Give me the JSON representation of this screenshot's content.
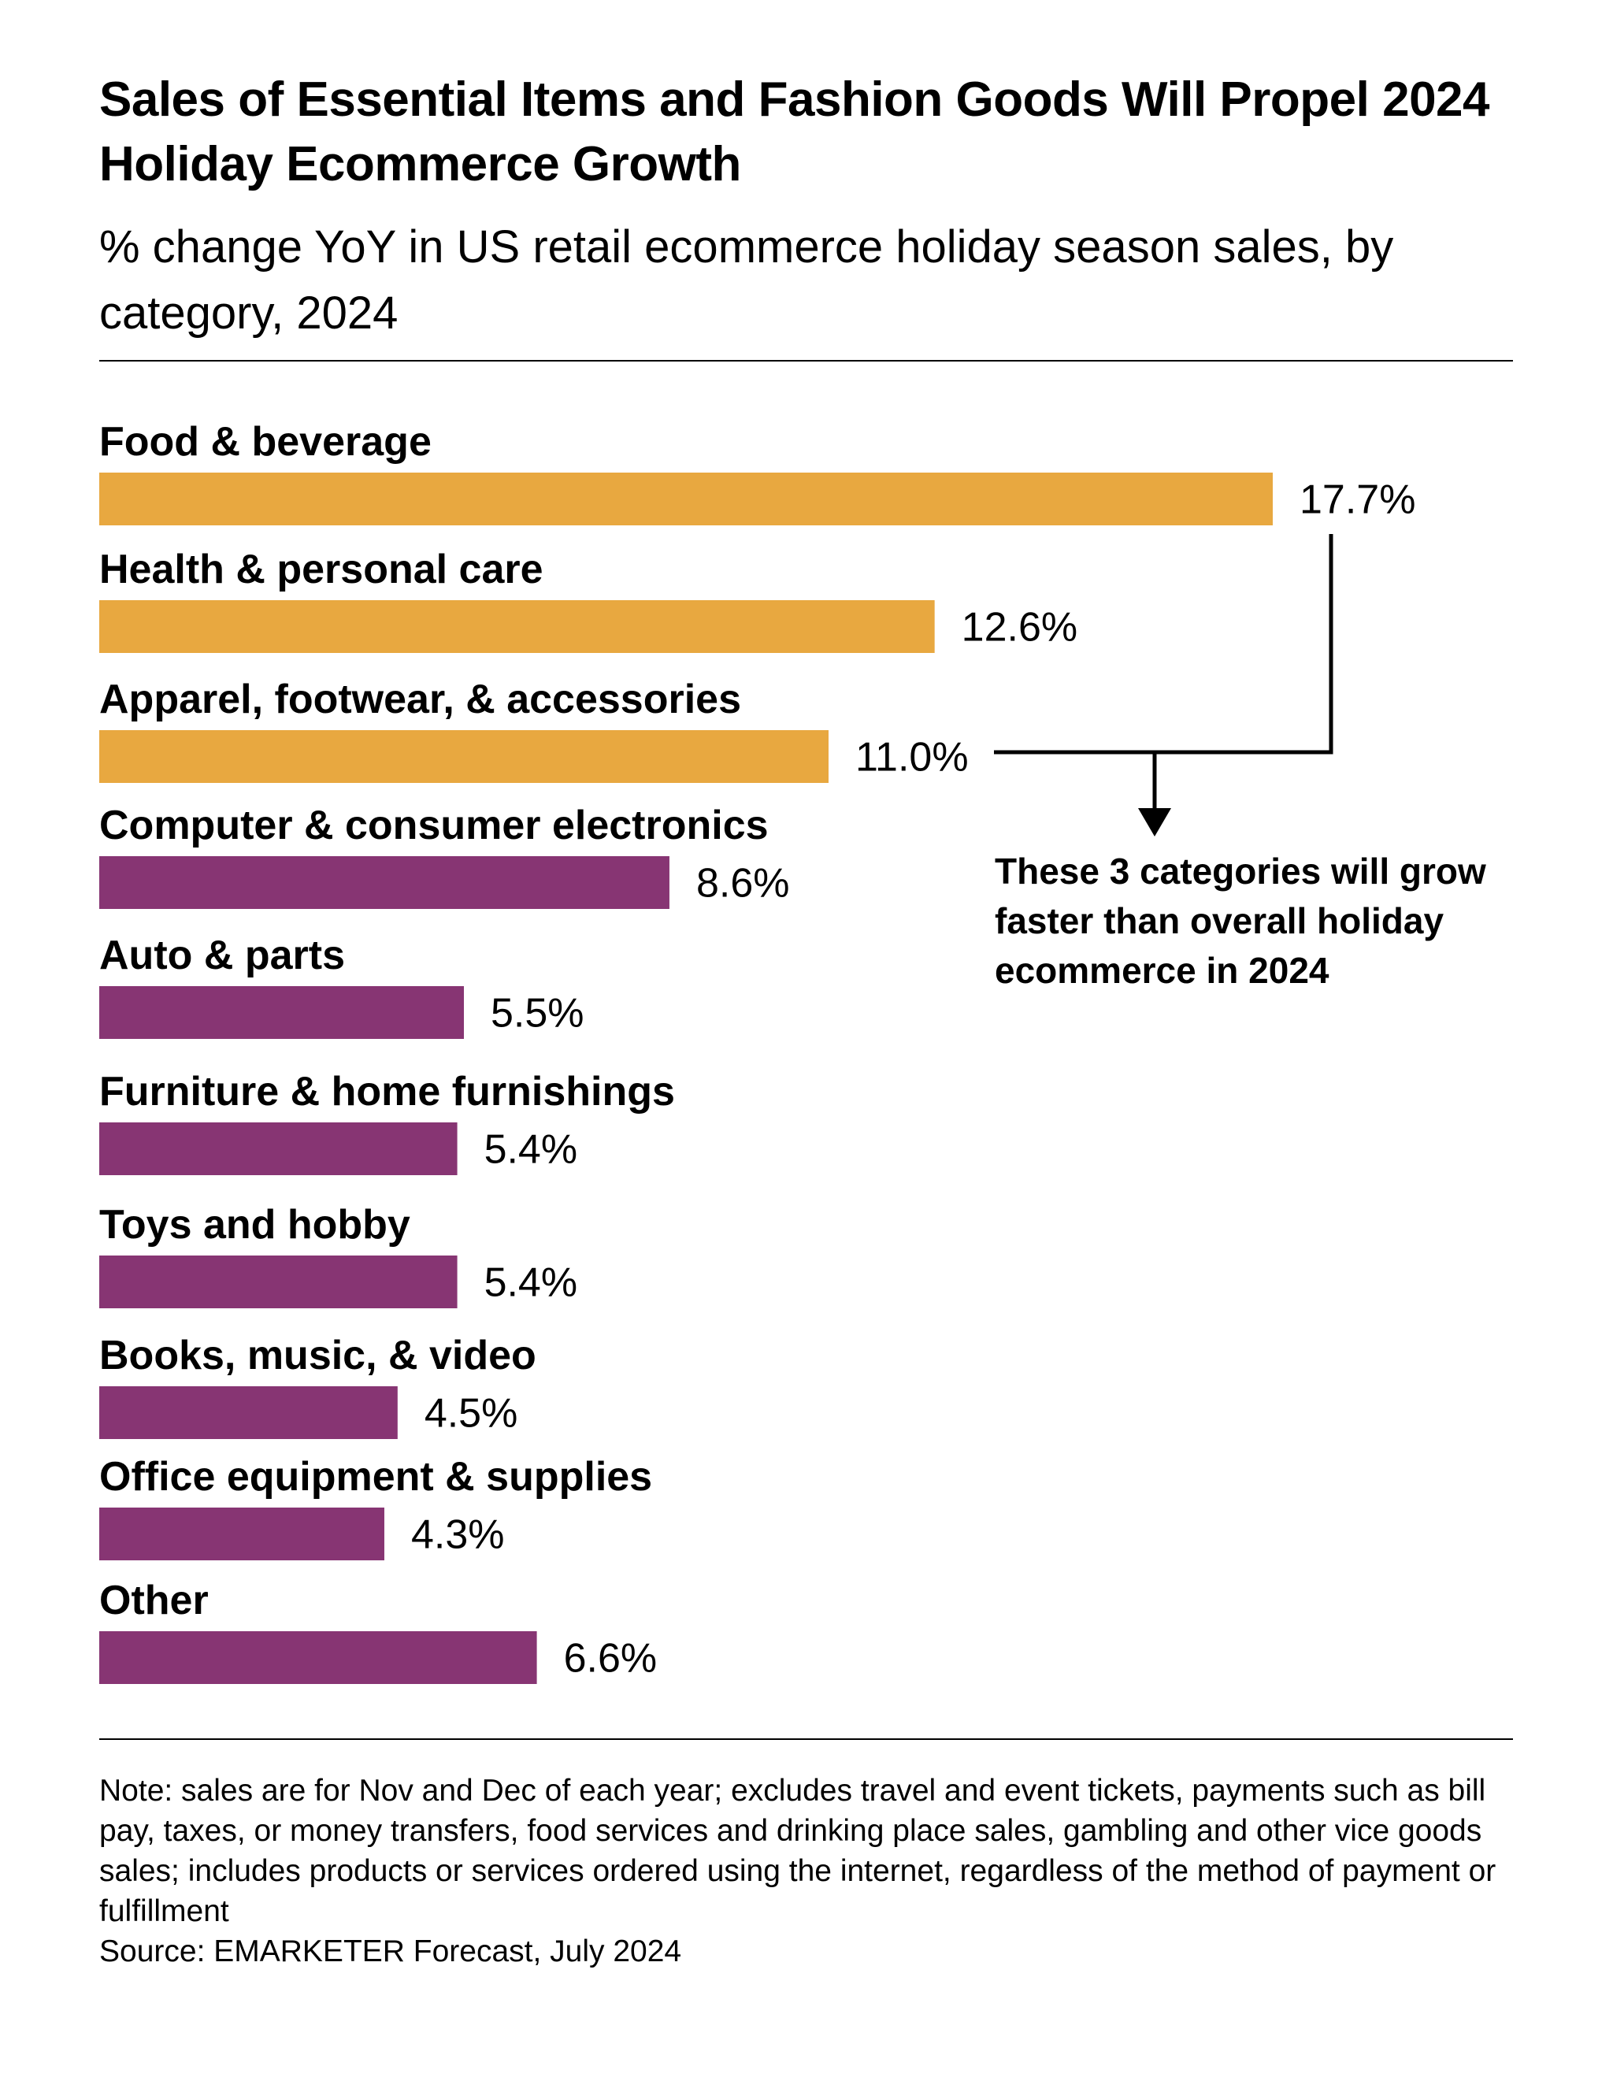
{
  "header": {
    "title": "Sales of Essential Items and Fashion Goods Will Propel 2024 Holiday Ecommerce Growth",
    "subtitle": "% change YoY in US retail ecommerce holiday season sales, by category, 2024"
  },
  "chart_data": {
    "type": "bar",
    "orientation": "horizontal",
    "categories": [
      "Food & beverage",
      "Health & personal care",
      "Apparel, footwear, & accessories",
      "Computer & consumer electronics",
      "Auto & parts",
      "Furniture & home furnishings",
      "Toys and hobby",
      "Books, music, & video",
      "Office equipment & supplies",
      "Other"
    ],
    "values": [
      17.7,
      12.6,
      11.0,
      8.6,
      5.5,
      5.4,
      5.4,
      4.5,
      4.3,
      6.6
    ],
    "value_labels": [
      "17.7%",
      "12.6%",
      "11.0%",
      "8.6%",
      "5.5%",
      "5.4%",
      "5.4%",
      "4.5%",
      "4.3%",
      "6.6%"
    ],
    "highlight_count": 3,
    "colors": {
      "highlight": "#E8A840",
      "default": "#873573"
    },
    "xlim": [
      0,
      17.7
    ],
    "grid": false,
    "legend": "none"
  },
  "annotation": {
    "text": "These 3 categories will grow faster than overall holiday ecommerce in 2024"
  },
  "footer": {
    "note": "Note: sales are for Nov and Dec of each year; excludes travel and event tickets, payments such as bill pay, taxes, or money transfers, food services and drinking place sales, gambling and other vice goods sales; includes products or services ordered using the internet, regardless of the method of payment or fulfillment",
    "source": "Source: EMARKETER Forecast, July 2024"
  }
}
